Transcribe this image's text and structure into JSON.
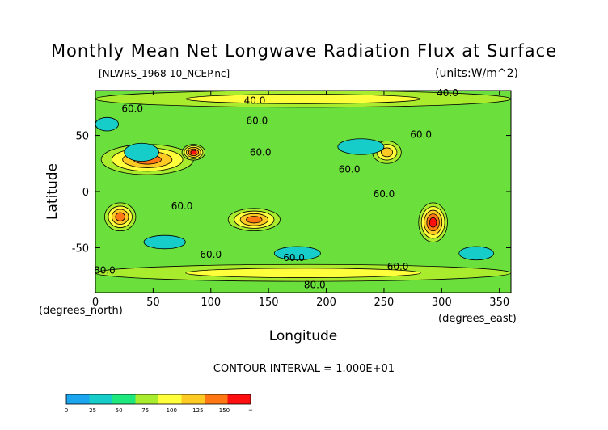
{
  "chart_data": {
    "type": "heatmap",
    "title": "Monthly Mean Net Longwave Radiation Flux at Surface",
    "file_label": "[NLWRS_1968-10_NCEP.nc]",
    "units_label": "(units:W/m^2)",
    "xlabel": "Longitude",
    "ylabel": "Latitude",
    "x_unit_label": "(degrees_east)",
    "y_unit_label": "(degrees_north)",
    "xlim": [
      0,
      360
    ],
    "ylim": [
      -90,
      90
    ],
    "x_ticks": [
      0,
      50,
      100,
      150,
      200,
      250,
      300,
      350
    ],
    "y_ticks": [
      -50,
      0,
      50
    ],
    "contour_interval_text": "CONTOUR INTERVAL = 1.000E+01",
    "contour_labels": [
      {
        "text": "40.0",
        "lon": 138,
        "lat": 78
      },
      {
        "text": "40.0",
        "lon": 305,
        "lat": 85
      },
      {
        "text": "60.0",
        "lon": 32,
        "lat": 71
      },
      {
        "text": "60.0",
        "lon": 140,
        "lat": 60
      },
      {
        "text": "60.0",
        "lon": 143,
        "lat": 32
      },
      {
        "text": "60.0",
        "lon": 282,
        "lat": 48
      },
      {
        "text": "60.0",
        "lon": 220,
        "lat": 17
      },
      {
        "text": "60.0",
        "lon": 75,
        "lat": -16
      },
      {
        "text": "60.0",
        "lon": 250,
        "lat": -5
      },
      {
        "text": "60.0",
        "lon": 100,
        "lat": -59
      },
      {
        "text": "60.0",
        "lon": 172,
        "lat": -62
      },
      {
        "text": "80.0",
        "lon": 8,
        "lat": -73
      },
      {
        "text": "60.0",
        "lon": 262,
        "lat": -70
      },
      {
        "text": "80.0",
        "lon": 190,
        "lat": -86
      }
    ],
    "colorbar": {
      "levels": [
        "0",
        "25",
        "50",
        "75",
        "100",
        "125",
        "150",
        "∞"
      ],
      "colors": [
        "#1aa5ee",
        "#16cdc9",
        "#1ee87d",
        "#a9ec2e",
        "#ffff3b",
        "#ffca24",
        "#ff7814",
        "#ff0f0f"
      ]
    },
    "background_value_color": "#6be03c",
    "features": [
      {
        "name": "north-africa-arabia-high",
        "lon_range": [
          5,
          85
        ],
        "lat_range": [
          15,
          42
        ],
        "peak": 150
      },
      {
        "name": "southern-africa-high",
        "lon_range": [
          8,
          35
        ],
        "lat_range": [
          -35,
          -10
        ],
        "peak": 150
      },
      {
        "name": "australia-high",
        "lon_range": [
          115,
          160
        ],
        "lat_range": [
          -35,
          -15
        ],
        "peak": 150
      },
      {
        "name": "north-america-high",
        "lon_range": [
          240,
          265
        ],
        "lat_range": [
          25,
          45
        ],
        "peak": 125
      },
      {
        "name": "andes-high",
        "lon_range": [
          280,
          305
        ],
        "lat_range": [
          -45,
          -10
        ],
        "peak": 175
      },
      {
        "name": "tibet-high",
        "lon_range": [
          75,
          95
        ],
        "lat_range": [
          28,
          42
        ],
        "peak": 175
      },
      {
        "name": "southern-ocean-band",
        "lon_range": [
          0,
          360
        ],
        "lat_range": [
          -80,
          -65
        ],
        "peak": 100
      },
      {
        "name": "arctic-band",
        "lon_range": [
          0,
          360
        ],
        "lat_range": [
          75,
          90
        ],
        "peak": 100
      }
    ]
  }
}
